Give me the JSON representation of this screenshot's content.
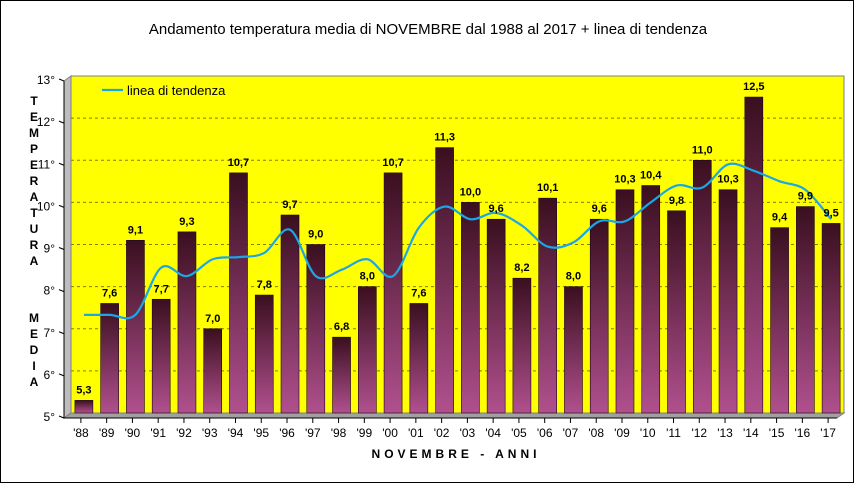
{
  "chart_data": {
    "type": "bar",
    "title": "Andamento temperatura media di NOVEMBRE dal 1988 al 2017 + linea di tendenza",
    "xlabel": "NOVEMBRE - ANNI",
    "ylabel_top": "TEMPERATURA",
    "ylabel_bottom": "MEDIA",
    "categories": [
      "'88",
      "'89",
      "'90",
      "'91",
      "'92",
      "'93",
      "'94",
      "'95",
      "'96",
      "'97",
      "'98",
      "'99",
      "'00",
      "'01",
      "'02",
      "'03",
      "'04",
      "'05",
      "'06",
      "'07",
      "'08",
      "'09",
      "'10",
      "'11",
      "'12",
      "'13",
      "'14",
      "'15",
      "'16",
      "'17"
    ],
    "values": [
      5.3,
      7.6,
      9.1,
      7.7,
      9.3,
      7.0,
      10.7,
      7.8,
      9.7,
      9.0,
      6.8,
      8.0,
      10.7,
      7.6,
      11.3,
      10.0,
      9.6,
      8.2,
      10.1,
      8.0,
      9.6,
      10.3,
      10.4,
      9.8,
      11.0,
      10.3,
      12.5,
      9.4,
      9.9,
      9.5
    ],
    "value_labels": [
      "5,3",
      "7,6",
      "9,1",
      "7,7",
      "9,3",
      "7,0",
      "10,7",
      "7,8",
      "9,7",
      "9,0",
      "6,8",
      "8,0",
      "10,7",
      "7,6",
      "11,3",
      "10,0",
      "9,6",
      "8,2",
      "10,1",
      "8,0",
      "9,6",
      "10,3",
      "10,4",
      "9,8",
      "11,0",
      "10,3",
      "12,5",
      "9,4",
      "9,9",
      "9,5"
    ],
    "series": [
      {
        "name": "linea di tendenza",
        "type": "line",
        "values": [
          7.33,
          7.33,
          7.33,
          8.45,
          8.25,
          8.65,
          8.7,
          8.8,
          9.35,
          8.25,
          8.4,
          8.65,
          8.25,
          9.4,
          9.9,
          9.6,
          9.75,
          9.45,
          8.95,
          9.05,
          9.55,
          9.55,
          10.0,
          10.4,
          10.35,
          10.9,
          10.75,
          10.5,
          10.3,
          9.6
        ]
      }
    ],
    "ylim": [
      5,
      13
    ],
    "yticks": [
      5,
      6,
      7,
      8,
      9,
      10,
      11,
      12,
      13
    ],
    "ytick_labels": [
      "5°",
      "6°",
      "7°",
      "8°",
      "9°",
      "10°",
      "11°",
      "12°",
      "13°"
    ],
    "grid": true,
    "legend": "top-left",
    "colors": {
      "plot_background": "#ffff00",
      "bar_top": "#3a0f1f",
      "bar_bottom": "#b0508e",
      "trend_line": "#1aa7e6",
      "gridline": "#808000"
    }
  }
}
